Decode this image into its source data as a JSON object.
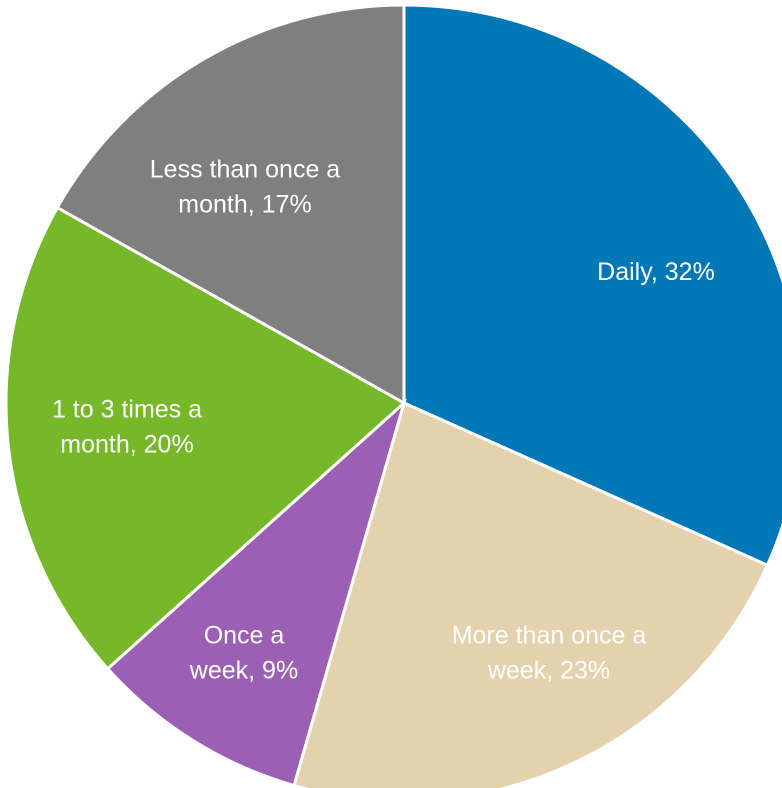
{
  "chart_data": {
    "type": "pie",
    "start_angle_deg": 0,
    "direction": "clockwise",
    "slices": [
      {
        "label_lines": [
          "Daily, 32%"
        ],
        "category": "Daily",
        "value": 32,
        "color": "#0077B6"
      },
      {
        "label_lines": [
          "More than once a",
          "week, 23%"
        ],
        "category": "More than once a week",
        "value": 23,
        "color": "#E4D1AD"
      },
      {
        "label_lines": [
          "Once a",
          "week, 9%"
        ],
        "category": "Once a week",
        "value": 9,
        "color": "#9B5FB4"
      },
      {
        "label_lines": [
          "1 to 3 times a",
          "month, 20%"
        ],
        "category": "1 to 3 times a month",
        "value": 20,
        "color": "#76B82A"
      },
      {
        "label_lines": [
          "Less than once a",
          "month, 17%"
        ],
        "category": "Less than once a month",
        "value": 17,
        "color": "#7F7F7F"
      }
    ]
  }
}
